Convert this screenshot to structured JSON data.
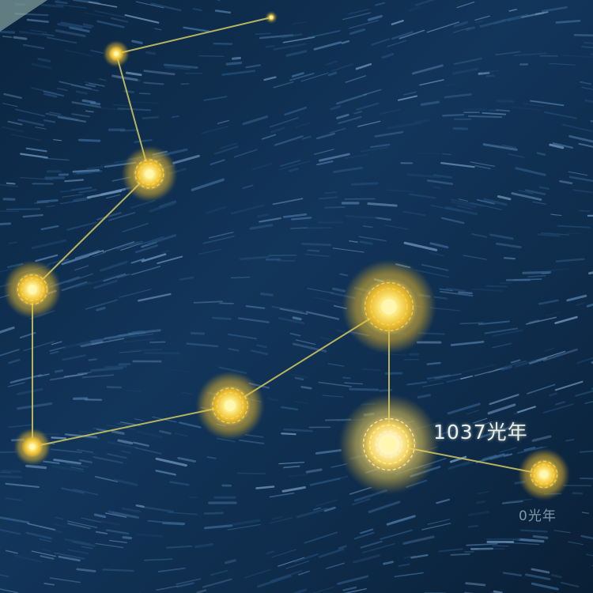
{
  "scene": {
    "description_name": "constellation",
    "colors": {
      "sky_dark": "#081a2c",
      "sky_mid": "#163a5e",
      "brush_light": "#4f7aa6",
      "line": "#c9c261",
      "star_core": "#fff7b0",
      "star_glow": "#f2c531"
    }
  },
  "labels": {
    "distance_main": "1037光年",
    "distance_small": "0光年"
  }
}
